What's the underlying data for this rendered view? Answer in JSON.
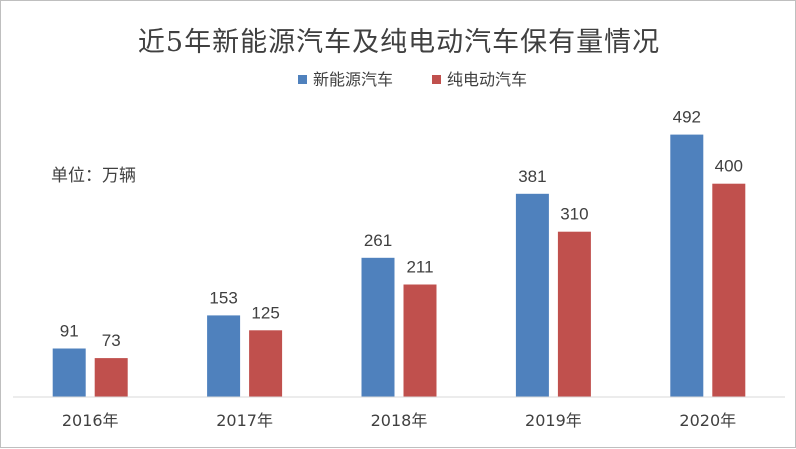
{
  "chart_data": {
    "type": "bar",
    "title": "近5年新能源汽车及纯电动汽车保有量情况",
    "unit_label": "单位：万辆",
    "categories": [
      "2016年",
      "2017年",
      "2018年",
      "2019年",
      "2020年"
    ],
    "series": [
      {
        "name": "新能源汽车",
        "color": "#4f81bd",
        "values": [
          91,
          153,
          261,
          381,
          492
        ]
      },
      {
        "name": "纯电动汽车",
        "color": "#c0504d",
        "values": [
          73,
          125,
          211,
          310,
          400
        ]
      }
    ],
    "ylim": [
      0,
      540
    ],
    "grid": false,
    "legend_position": "top-center"
  }
}
